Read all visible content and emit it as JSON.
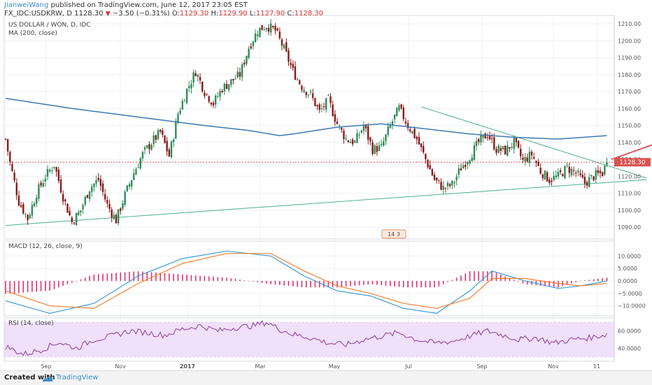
{
  "header": {
    "author": "JianweiWang",
    "published": "published on TradingView.com, June 12, 2017 23:05 EST",
    "symbol": "FX_IDC:USDKRW, D",
    "last": "1128.30",
    "change": "−3.50 (−0.31%)",
    "o_label": "O:",
    "o_val": "1129.30",
    "h_label": "H:",
    "h_val": "1129.90",
    "l_label": "L:",
    "l_val": "1127.90",
    "c_label": "C:",
    "c_val": "1128.30"
  },
  "panes": {
    "main_title": "US DOLLAR / WON, D, IDC",
    "ma_title": "MA (200, close)",
    "macd_title": "MACD (12, 26, close, 9)",
    "rsi_title": "RSI (14, close)",
    "price_badge": "1128.30",
    "watermark_num": "14  3"
  },
  "footer": {
    "created": "Created with",
    "brand": "TradingView"
  },
  "colors": {
    "up": "#2e8b57",
    "down": "#8b1a1a",
    "ma": "#3a7ab0",
    "macd": "#3a9bdc",
    "signal": "#f08030",
    "hist": "#e0306a",
    "rsi": "#8b3a9b",
    "rsi_band": "#f0e0fa",
    "trend": "#4ab28c",
    "last_price": "#d9534f",
    "arrow": "#e03030"
  },
  "chart_data": [
    {
      "type": "candlestick",
      "title": "US DOLLAR / WON, D, IDC",
      "ylim": [
        1083,
        1215
      ],
      "yticks": [
        1090,
        1100,
        1110,
        1120,
        1130,
        1140,
        1150,
        1160,
        1170,
        1180,
        1190,
        1200,
        1210
      ],
      "xtick_labels": [
        "Sep",
        "Nov",
        "2017",
        "Mar",
        "May",
        "Jul",
        "Sep",
        "Nov",
        "11"
      ],
      "close_path": [
        [
          0,
          1142
        ],
        [
          2,
          1128
        ],
        [
          6,
          1105
        ],
        [
          10,
          1095
        ],
        [
          14,
          1110
        ],
        [
          18,
          1120
        ],
        [
          22,
          1127
        ],
        [
          26,
          1108
        ],
        [
          30,
          1093
        ],
        [
          34,
          1100
        ],
        [
          38,
          1113
        ],
        [
          42,
          1118
        ],
        [
          46,
          1103
        ],
        [
          50,
          1094
        ],
        [
          54,
          1109
        ],
        [
          58,
          1122
        ],
        [
          62,
          1133
        ],
        [
          66,
          1140
        ],
        [
          70,
          1146
        ],
        [
          74,
          1132
        ],
        [
          78,
          1157
        ],
        [
          82,
          1171
        ],
        [
          86,
          1182
        ],
        [
          90,
          1170
        ],
        [
          94,
          1163
        ],
        [
          98,
          1172
        ],
        [
          102,
          1176
        ],
        [
          106,
          1180
        ],
        [
          110,
          1196
        ],
        [
          114,
          1206
        ],
        [
          118,
          1209
        ],
        [
          122,
          1206
        ],
        [
          126,
          1195
        ],
        [
          130,
          1182
        ],
        [
          134,
          1173
        ],
        [
          138,
          1168
        ],
        [
          142,
          1158
        ],
        [
          146,
          1165
        ],
        [
          150,
          1151
        ],
        [
          154,
          1142
        ],
        [
          158,
          1140
        ],
        [
          162,
          1150
        ],
        [
          166,
          1136
        ],
        [
          170,
          1137
        ],
        [
          174,
          1150
        ],
        [
          178,
          1160
        ],
        [
          182,
          1150
        ],
        [
          186,
          1142
        ],
        [
          190,
          1130
        ],
        [
          194,
          1118
        ],
        [
          198,
          1113
        ],
        [
          202,
          1115
        ],
        [
          206,
          1125
        ],
        [
          210,
          1132
        ],
        [
          214,
          1140
        ],
        [
          218,
          1145
        ],
        [
          222,
          1136
        ],
        [
          226,
          1135
        ],
        [
          230,
          1140
        ],
        [
          234,
          1129
        ],
        [
          238,
          1133
        ],
        [
          242,
          1123
        ],
        [
          246,
          1118
        ],
        [
          250,
          1120
        ],
        [
          254,
          1125
        ],
        [
          258,
          1122
        ],
        [
          262,
          1116
        ],
        [
          266,
          1120
        ],
        [
          270,
          1122
        ],
        [
          272,
          1128.3
        ]
      ],
      "ma200_path": [
        [
          0,
          1166
        ],
        [
          30,
          1160
        ],
        [
          60,
          1155
        ],
        [
          90,
          1150
        ],
        [
          110,
          1147
        ],
        [
          124,
          1144
        ],
        [
          130,
          1145
        ],
        [
          150,
          1149
        ],
        [
          170,
          1151
        ],
        [
          190,
          1148
        ],
        [
          210,
          1145
        ],
        [
          230,
          1143
        ],
        [
          250,
          1142
        ],
        [
          272,
          1144
        ]
      ],
      "last_price": 1128.3,
      "trendline_lower": {
        "from": [
          0,
          1091
        ],
        "to": [
          290,
          1118
        ]
      },
      "trendline_upper": {
        "from": [
          188,
          1161
        ],
        "to": [
          290,
          1119
        ]
      },
      "arrow": {
        "from": [
          274,
          1130
        ],
        "to": [
          300,
          1142
        ]
      }
    },
    {
      "type": "line",
      "title": "MACD (12, 26, close, 9)",
      "ylim": [
        -14,
        16
      ],
      "yticks": [
        -10,
        -5,
        0,
        5,
        10
      ],
      "series": [
        {
          "name": "MACD",
          "values": [
            [
              0,
              -8
            ],
            [
              20,
              -13
            ],
            [
              40,
              -9
            ],
            [
              60,
              2
            ],
            [
              80,
              9
            ],
            [
              100,
              12
            ],
            [
              120,
              10
            ],
            [
              135,
              2
            ],
            [
              150,
              -4
            ],
            [
              165,
              -6
            ],
            [
              180,
              -11
            ],
            [
              195,
              -13
            ],
            [
              210,
              -4
            ],
            [
              220,
              4
            ],
            [
              235,
              0
            ],
            [
              250,
              -3
            ],
            [
              260,
              -2
            ],
            [
              272,
              0
            ]
          ]
        },
        {
          "name": "Signal",
          "values": [
            [
              0,
              -4
            ],
            [
              20,
              -10
            ],
            [
              40,
              -11
            ],
            [
              60,
              -1
            ],
            [
              80,
              7
            ],
            [
              100,
              11
            ],
            [
              120,
              11
            ],
            [
              135,
              4
            ],
            [
              150,
              -2
            ],
            [
              165,
              -5
            ],
            [
              180,
              -9
            ],
            [
              195,
              -11
            ],
            [
              210,
              -7
            ],
            [
              220,
              1
            ],
            [
              235,
              1
            ],
            [
              250,
              -1
            ],
            [
              260,
              -2
            ],
            [
              272,
              -1
            ]
          ]
        }
      ]
    },
    {
      "type": "line",
      "title": "RSI (14, close)",
      "ylim": [
        25,
        75
      ],
      "yticks": [
        40,
        60
      ],
      "band": [
        30,
        70
      ],
      "series": [
        {
          "name": "RSI",
          "values": [
            [
              0,
              42
            ],
            [
              8,
              33
            ],
            [
              16,
              38
            ],
            [
              24,
              47
            ],
            [
              32,
              40
            ],
            [
              40,
              50
            ],
            [
              48,
              54
            ],
            [
              56,
              60
            ],
            [
              64,
              58
            ],
            [
              72,
              55
            ],
            [
              80,
              62
            ],
            [
              88,
              66
            ],
            [
              96,
              60
            ],
            [
              104,
              64
            ],
            [
              112,
              66
            ],
            [
              118,
              70
            ],
            [
              124,
              62
            ],
            [
              130,
              56
            ],
            [
              138,
              52
            ],
            [
              146,
              46
            ],
            [
              154,
              44
            ],
            [
              162,
              50
            ],
            [
              170,
              54
            ],
            [
              178,
              58
            ],
            [
              186,
              50
            ],
            [
              194,
              46
            ],
            [
              202,
              48
            ],
            [
              210,
              54
            ],
            [
              218,
              60
            ],
            [
              224,
              56
            ],
            [
              232,
              50
            ],
            [
              240,
              52
            ],
            [
              248,
              46
            ],
            [
              256,
              50
            ],
            [
              264,
              52
            ],
            [
              272,
              56
            ]
          ]
        }
      ]
    }
  ]
}
